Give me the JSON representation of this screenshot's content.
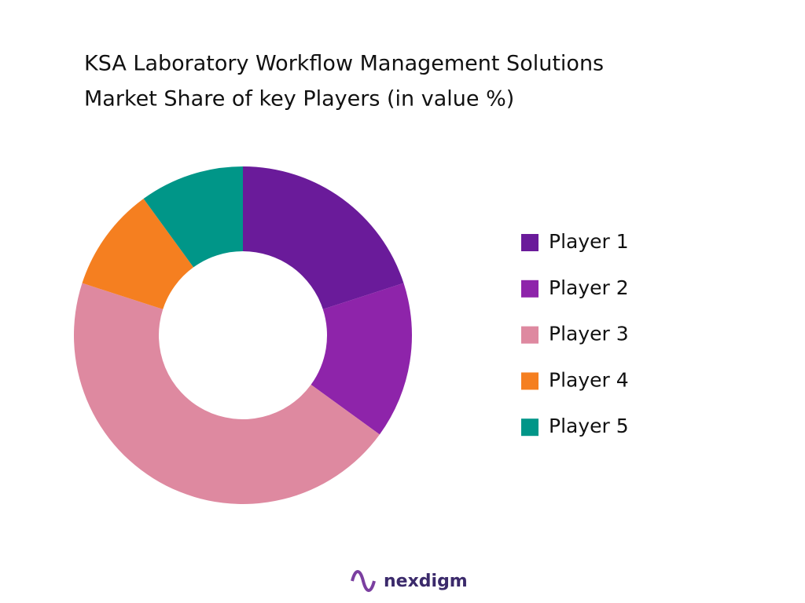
{
  "chart_data": {
    "type": "donut",
    "title": [
      "KSA Laboratory Workflow Management Solutions",
      "Market Share of key Players (in value %)"
    ],
    "categories": [
      "Player 1",
      "Player 2",
      "Player 3",
      "Player 4",
      "Player 5"
    ],
    "values": [
      20,
      15,
      45,
      10,
      10
    ],
    "colors": [
      "#6a1b9a",
      "#8e24aa",
      "#de89a0",
      "#f57f20",
      "#009688"
    ],
    "legend": "right"
  },
  "footer": {
    "brand": "nexdigm"
  }
}
